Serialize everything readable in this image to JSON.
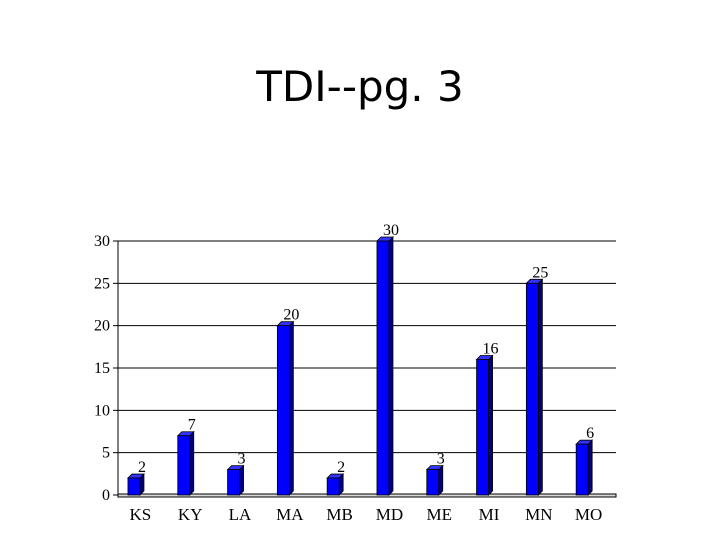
{
  "slide": {
    "title": "TDI--pg. 3"
  },
  "colors": {
    "bar_front": "#0000ff",
    "bar_side": "#000080",
    "bar_top": "#3333ff",
    "grid": "#000000"
  },
  "chart_data": {
    "type": "bar",
    "title": "",
    "xlabel": "",
    "ylabel": "",
    "ylim": [
      0,
      30
    ],
    "yticks": [
      0,
      5,
      10,
      15,
      20,
      25,
      30
    ],
    "grid": true,
    "categories": [
      "KS",
      "KY",
      "LA",
      "MA",
      "MB",
      "MD",
      "ME",
      "MI",
      "MN",
      "MO"
    ],
    "values": [
      2,
      7,
      3,
      20,
      2,
      30,
      3,
      16,
      25,
      6
    ],
    "data_labels": [
      "2",
      "7",
      "3",
      "20",
      "2",
      "30",
      "3",
      "16",
      "25",
      "6"
    ]
  }
}
